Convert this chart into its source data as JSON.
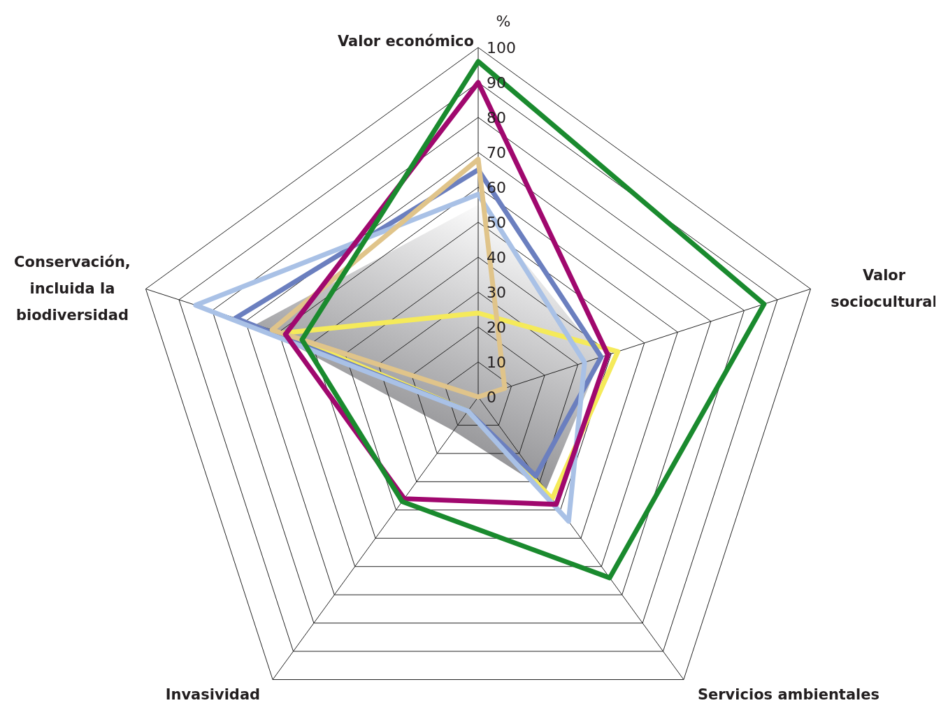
{
  "chart_data": {
    "type": "radar",
    "ylabel": "%",
    "categories": [
      "Valor económico",
      "Valor sociocultural",
      "Servicios ambientales",
      "Invasividad",
      "Conservación, incluida la biodiversidad"
    ],
    "ylim": [
      0,
      100
    ],
    "yticks": [
      0,
      10,
      20,
      30,
      40,
      50,
      60,
      70,
      80,
      90,
      100
    ],
    "grid": true,
    "series": [
      {
        "type": "area",
        "color": "#6e6e72",
        "values": [
          55,
          37,
          33,
          12,
          67
        ]
      },
      {
        "color": "#f5ea5a",
        "values": [
          24,
          42,
          36,
          5,
          59
        ]
      },
      {
        "color": "#6b7fbf",
        "values": [
          65,
          37,
          28,
          5,
          73
        ]
      },
      {
        "color": "#a9c1e6",
        "values": [
          58,
          32,
          44,
          5,
          85
        ]
      },
      {
        "color": "#e0c48a",
        "values": [
          68,
          8,
          0,
          0,
          62
        ]
      },
      {
        "color": "#a0086e",
        "values": [
          90,
          39,
          38,
          36,
          58
        ]
      },
      {
        "color": "#1a8a2e",
        "values": [
          96,
          86,
          64,
          37,
          53
        ]
      }
    ]
  }
}
